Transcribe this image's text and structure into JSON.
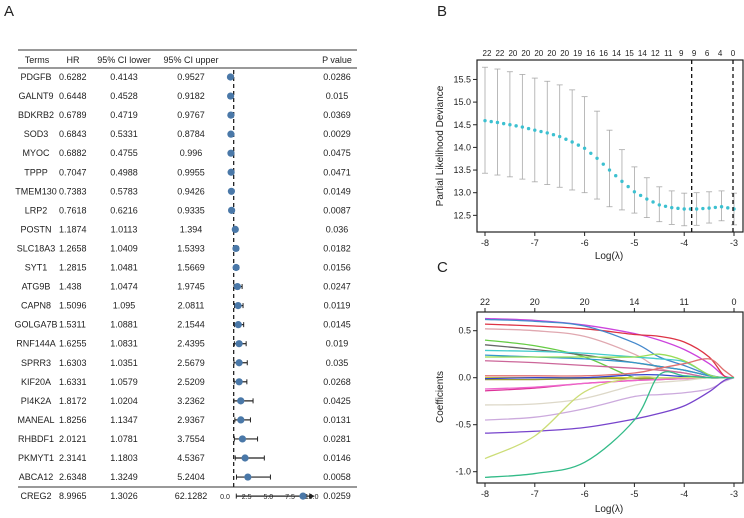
{
  "panels": {
    "a": "A",
    "b": "B",
    "c": "C"
  },
  "chart_data": [
    {
      "type": "table",
      "panel": "A",
      "headers": {
        "terms": "Terms",
        "hr": "HR",
        "lower": "95% CI lower",
        "upper": "95% CI upper",
        "p": "P value"
      },
      "reference_line": 1,
      "xlim": [
        0,
        10
      ],
      "xticks": [
        "0.0",
        "2.5",
        "5.0",
        "7.5",
        "10.0"
      ],
      "point_color": "#4a78a8",
      "rows": [
        {
          "term": "PDGFB",
          "hr": "0.6282",
          "lower": "0.4143",
          "upper": "0.9527",
          "p": "0.0286"
        },
        {
          "term": "GALNT9",
          "hr": "0.6448",
          "lower": "0.4528",
          "upper": "0.9182",
          "p": "0.015"
        },
        {
          "term": "BDKRB2",
          "hr": "0.6789",
          "lower": "0.4719",
          "upper": "0.9767",
          "p": "0.0369"
        },
        {
          "term": "SOD3",
          "hr": "0.6843",
          "lower": "0.5331",
          "upper": "0.8784",
          "p": "0.0029"
        },
        {
          "term": "MYOC",
          "hr": "0.6882",
          "lower": "0.4755",
          "upper": "0.996",
          "p": "0.0475"
        },
        {
          "term": "TPPP",
          "hr": "0.7047",
          "lower": "0.4988",
          "upper": "0.9955",
          "p": "0.0471"
        },
        {
          "term": "TMEM130",
          "hr": "0.7383",
          "lower": "0.5783",
          "upper": "0.9426",
          "p": "0.0149"
        },
        {
          "term": "LRP2",
          "hr": "0.7618",
          "lower": "0.6216",
          "upper": "0.9335",
          "p": "0.0087"
        },
        {
          "term": "POSTN",
          "hr": "1.1874",
          "lower": "1.0113",
          "upper": "1.394",
          "p": "0.036"
        },
        {
          "term": "SLC18A3",
          "hr": "1.2658",
          "lower": "1.0409",
          "upper": "1.5393",
          "p": "0.0182"
        },
        {
          "term": "SYT1",
          "hr": "1.2815",
          "lower": "1.0481",
          "upper": "1.5669",
          "p": "0.0156"
        },
        {
          "term": "ATG9B",
          "hr": "1.438",
          "lower": "1.0474",
          "upper": "1.9745",
          "p": "0.0247"
        },
        {
          "term": "CAPN8",
          "hr": "1.5096",
          "lower": "1.095",
          "upper": "2.0811",
          "p": "0.0119"
        },
        {
          "term": "GOLGA7B",
          "hr": "1.5311",
          "lower": "1.0881",
          "upper": "2.1544",
          "p": "0.0145"
        },
        {
          "term": "RNF144A",
          "hr": "1.6255",
          "lower": "1.0831",
          "upper": "2.4395",
          "p": "0.019"
        },
        {
          "term": "SPRR3",
          "hr": "1.6303",
          "lower": "1.0351",
          "upper": "2.5679",
          "p": "0.035"
        },
        {
          "term": "KIF20A",
          "hr": "1.6331",
          "lower": "1.0579",
          "upper": "2.5209",
          "p": "0.0268"
        },
        {
          "term": "PI4K2A",
          "hr": "1.8172",
          "lower": "1.0204",
          "upper": "3.2362",
          "p": "0.0425"
        },
        {
          "term": "MANEAL",
          "hr": "1.8256",
          "lower": "1.1347",
          "upper": "2.9367",
          "p": "0.0131"
        },
        {
          "term": "RHBDF1",
          "hr": "2.0121",
          "lower": "1.0781",
          "upper": "3.7554",
          "p": "0.0281"
        },
        {
          "term": "PKMYT1",
          "hr": "2.3141",
          "lower": "1.1803",
          "upper": "4.5367",
          "p": "0.0146"
        },
        {
          "term": "ABCA12",
          "hr": "2.6348",
          "lower": "1.3249",
          "upper": "5.2404",
          "p": "0.0058"
        },
        {
          "term": "CREG2",
          "hr": "8.9965",
          "lower": "1.3026",
          "upper": "62.1282",
          "p": "0.0259"
        }
      ]
    },
    {
      "type": "line",
      "panel": "B",
      "xlabel": "Log(λ)",
      "ylabel": "Partial Likelihood Deviance",
      "xlim": [
        -8,
        -3
      ],
      "ylim": [
        12.2,
        15.85
      ],
      "xticks": [
        "-8",
        "-7",
        "-6",
        "-5",
        "-4",
        "-3"
      ],
      "yticks": [
        "12.5",
        "13.0",
        "13.5",
        "14.0",
        "14.5",
        "15.0",
        "15.5"
      ],
      "top_labels": [
        "22",
        "22",
        "20",
        "20",
        "20",
        "20",
        "20",
        "19",
        "16",
        "16",
        "14",
        "15",
        "14",
        "12",
        "11",
        "9",
        "9",
        "6",
        "4",
        "0"
      ],
      "vlines": [
        -3.85,
        -3.02
      ],
      "point_color": "#3cc0d0",
      "errorbar_color": "#a8a8a8",
      "x": [
        -8,
        -7.75,
        -7.5,
        -7.25,
        -7,
        -6.75,
        -6.5,
        -6.25,
        -6,
        -5.75,
        -5.5,
        -5.25,
        -5,
        -4.75,
        -4.5,
        -4.25,
        -4,
        -3.75,
        -3.5,
        -3.25,
        -3
      ],
      "mean": [
        14.59,
        14.55,
        14.5,
        14.45,
        14.38,
        14.32,
        14.24,
        14.12,
        13.98,
        13.76,
        13.5,
        13.25,
        13.02,
        12.86,
        12.73,
        12.67,
        12.64,
        12.64,
        12.66,
        12.69,
        12.64
      ],
      "upper": [
        15.77,
        15.73,
        15.67,
        15.61,
        15.53,
        15.46,
        15.38,
        15.27,
        15.12,
        14.8,
        14.38,
        13.95,
        13.57,
        13.33,
        13.13,
        13.04,
        12.99,
        13.0,
        13.02,
        13.04,
        12.99
      ],
      "lower": [
        13.43,
        13.39,
        13.35,
        13.3,
        13.24,
        13.18,
        13.12,
        13.06,
        13.0,
        12.86,
        12.69,
        12.62,
        12.55,
        12.45,
        12.36,
        12.3,
        12.27,
        12.28,
        12.33,
        12.38,
        12.29
      ]
    },
    {
      "type": "line",
      "panel": "C",
      "xlabel": "Log(λ)",
      "ylabel": "Coefficients",
      "xlim": [
        -8,
        -3
      ],
      "ylim": [
        -1.1,
        0.7
      ],
      "xticks": [
        "-8",
        "-7",
        "-6",
        "-5",
        "-4",
        "-3"
      ],
      "yticks": [
        "-1.0",
        "-0.5",
        "0.0",
        "0.5"
      ],
      "top_labels": [
        "22",
        "20",
        "20",
        "14",
        "11",
        "0"
      ],
      "x": [
        -8,
        -7,
        -6,
        -5,
        -4.5,
        -4,
        -3.5,
        -3.2,
        -3
      ],
      "series": [
        {
          "color": "#cc44dd",
          "values": [
            0.63,
            0.61,
            0.56,
            0.47,
            0.4,
            0.3,
            0.15,
            0.02,
            0
          ]
        },
        {
          "color": "#dd3344",
          "values": [
            0.57,
            0.55,
            0.52,
            0.46,
            0.44,
            0.38,
            0.22,
            0.02,
            0
          ]
        },
        {
          "color": "#4488cc",
          "values": [
            0.62,
            0.6,
            0.55,
            0.37,
            0.22,
            0.13,
            0.03,
            0,
            0
          ]
        },
        {
          "color": "#e0a8b0",
          "values": [
            0.52,
            0.5,
            0.44,
            0.25,
            0.1,
            0.05,
            0,
            0,
            0
          ]
        },
        {
          "color": "#66cc44",
          "values": [
            0.4,
            0.34,
            0.22,
            0,
            0,
            0,
            0,
            0,
            0
          ]
        },
        {
          "color": "#666666",
          "values": [
            0.35,
            0.3,
            0.24,
            0.16,
            0.12,
            0.08,
            0.02,
            0,
            0
          ]
        },
        {
          "color": "#44cccc",
          "values": [
            0.29,
            0.28,
            0.26,
            0.22,
            0.2,
            0.17,
            0.03,
            0,
            0
          ]
        },
        {
          "color": "#3399cc",
          "values": [
            0.24,
            0.22,
            0.2,
            0.16,
            0.12,
            0.08,
            0.02,
            0,
            0
          ]
        },
        {
          "color": "#99dd55",
          "values": [
            0.22,
            0.22,
            0.22,
            0.22,
            0.25,
            0.18,
            0.03,
            0,
            0
          ]
        },
        {
          "color": "#cc6699",
          "values": [
            0.18,
            0.16,
            0.13,
            0.1,
            0.08,
            0.05,
            0,
            0,
            0
          ]
        },
        {
          "color": "#e07070",
          "values": [
            0.02,
            0.02,
            0.02,
            0.05,
            0.1,
            0.15,
            0.2,
            0.08,
            0
          ]
        },
        {
          "color": "#cccc33",
          "values": [
            0,
            0,
            0,
            0,
            0,
            0,
            0,
            0,
            0
          ]
        },
        {
          "color": "#999933",
          "values": [
            -0.02,
            -0.02,
            -0.01,
            -0.01,
            0,
            0,
            0,
            0,
            0
          ]
        },
        {
          "color": "#3344cc",
          "values": [
            -0.01,
            0,
            0,
            0.03,
            0.03,
            0.01,
            0,
            0,
            0
          ]
        },
        {
          "color": "#dd3399",
          "values": [
            -0.14,
            -0.11,
            -0.06,
            -0.03,
            -0.02,
            -0.01,
            0,
            0,
            0
          ]
        },
        {
          "color": "#ee66cc",
          "values": [
            -0.12,
            -0.1,
            -0.06,
            -0.03,
            -0.02,
            -0.01,
            0,
            0,
            0
          ]
        },
        {
          "color": "#ddd8c8",
          "values": [
            -0.29,
            -0.28,
            -0.22,
            -0.08,
            -0.05,
            -0.03,
            0,
            0,
            0
          ]
        },
        {
          "color": "#ccaadd",
          "values": [
            -0.45,
            -0.42,
            -0.33,
            -0.2,
            -0.18,
            -0.16,
            -0.12,
            -0.04,
            0
          ]
        },
        {
          "color": "#7744cc",
          "values": [
            -0.59,
            -0.57,
            -0.53,
            -0.44,
            -0.38,
            -0.3,
            -0.15,
            -0.03,
            0
          ]
        },
        {
          "color": "#ccdd77",
          "values": [
            -0.86,
            -0.62,
            -0.15,
            0,
            0,
            0,
            0,
            0,
            0
          ]
        },
        {
          "color": "#33bb88",
          "values": [
            -1.06,
            -1.02,
            -0.9,
            -0.45,
            0.03,
            0.02,
            0,
            0,
            0
          ]
        }
      ]
    }
  ]
}
